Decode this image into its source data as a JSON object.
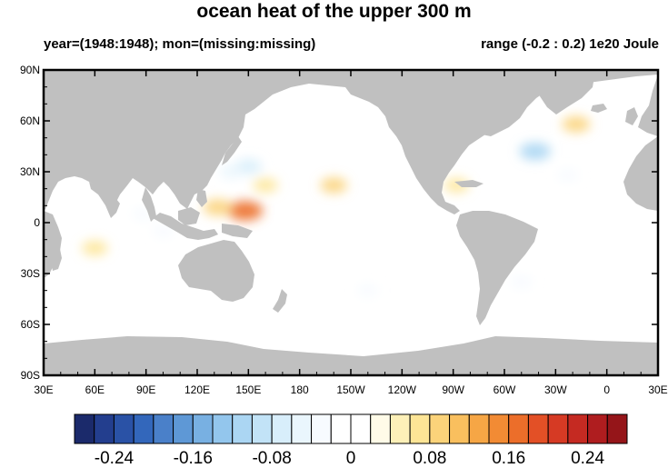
{
  "title": "ocean heat of the upper 300 m",
  "subtitle_left": "year=(1948:1948); mon=(missing:missing)",
  "subtitle_right": "range (-0.2 : 0.2) 1e20 Joule",
  "colors": {
    "land": "#c0c0c0",
    "ocean": "#ffffff",
    "frame": "#000000"
  },
  "chart_data": {
    "type": "heatmap",
    "title": "ocean heat of the upper 300 m",
    "xlabel": "",
    "ylabel": "",
    "x_ticks": [
      "30E",
      "60E",
      "90E",
      "120E",
      "150E",
      "180",
      "150W",
      "120W",
      "90W",
      "60W",
      "30W",
      "0",
      "30E"
    ],
    "y_ticks": [
      "90N",
      "60N",
      "30N",
      "0",
      "30S",
      "60S",
      "90S"
    ],
    "x_range_lon_east": [
      30,
      390
    ],
    "y_range_lat": [
      -90,
      90
    ],
    "colorbar": {
      "ticks": [
        "-0.24",
        "-0.16",
        "-0.08",
        "0",
        "0.08",
        "0.16",
        "0.24"
      ],
      "tick_values": [
        -0.24,
        -0.16,
        -0.08,
        0,
        0.08,
        0.16,
        0.24
      ],
      "colors": [
        "#1b2a6b",
        "#233e8e",
        "#2a52a6",
        "#3367bb",
        "#4a80c9",
        "#5e98d6",
        "#78b0e2",
        "#93c6ed",
        "#abd6f3",
        "#c2e3f7",
        "#d8eefb",
        "#eaf6fd",
        "#f7fbff",
        "#ffffff",
        "#ffffff",
        "#fffbe8",
        "#fdf0b8",
        "#fde596",
        "#fbd37a",
        "#f9bf5e",
        "#f6a645",
        "#f28b34",
        "#ec6e2a",
        "#e35026",
        "#d63a24",
        "#c52a22",
        "#af1d1f",
        "#951519"
      ]
    },
    "anomalies": [
      {
        "lon": 148,
        "lat": 7,
        "value": 0.16
      },
      {
        "lon": 132,
        "lat": 9,
        "value": 0.1
      },
      {
        "lon": 160,
        "lat": 22,
        "value": 0.06
      },
      {
        "lon": 200,
        "lat": 22,
        "value": 0.08
      },
      {
        "lon": 150,
        "lat": 33,
        "value": -0.08
      },
      {
        "lon": 140,
        "lat": 30,
        "value": -0.05
      },
      {
        "lon": 318,
        "lat": 42,
        "value": -0.12
      },
      {
        "lon": 342,
        "lat": 58,
        "value": 0.09
      },
      {
        "lon": 272,
        "lat": 22,
        "value": 0.06
      },
      {
        "lon": 337,
        "lat": 28,
        "value": -0.03
      },
      {
        "lon": 60,
        "lat": -15,
        "value": 0.07
      },
      {
        "lon": 88,
        "lat": 5,
        "value": -0.03
      },
      {
        "lon": 100,
        "lat": -5,
        "value": -0.03
      },
      {
        "lon": 220,
        "lat": -40,
        "value": -0.03
      },
      {
        "lon": 310,
        "lat": -35,
        "value": -0.04
      }
    ]
  }
}
